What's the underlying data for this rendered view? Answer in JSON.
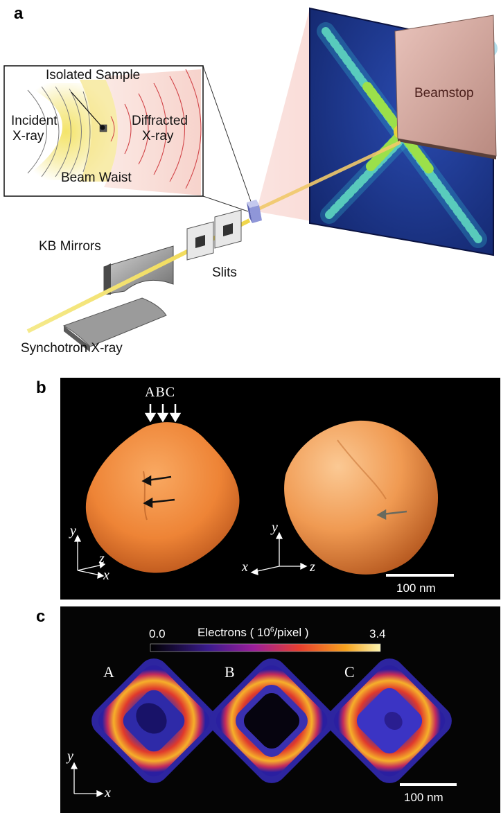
{
  "panel_a": {
    "letter": "a",
    "isolated_sample": "Isolated Sample",
    "incident_line1": "Incident",
    "incident_line2": "X-ray",
    "diffracted_line1": "Diffracted",
    "diffracted_line2": "X-ray",
    "beam_waist": "Beam Waist",
    "beamstop": "Beamstop",
    "kb_mirrors": "KB Mirrors",
    "slits": "Slits",
    "synchrotron": "Synchotron X-ray"
  },
  "panel_b": {
    "letter": "b",
    "abc_label": "ABC",
    "axis_left": {
      "y": "y",
      "z": "z",
      "x": "x"
    },
    "axis_right": {
      "y": "y",
      "x": "x",
      "z": "z"
    },
    "scalebar": "100 nm"
  },
  "panel_c": {
    "letter": "c",
    "colorbar_min": "0.0",
    "colorbar_title": "Electrons ( 10",
    "colorbar_exp": "6",
    "colorbar_unit": "/pixel )",
    "colorbar_max": "3.4",
    "slice_labels": [
      "A",
      "B",
      "C"
    ],
    "axis": {
      "y": "y",
      "x": "x"
    },
    "scalebar": "100 nm"
  },
  "colors": {
    "beam": "#f3e37a",
    "particle": "#f08a3a",
    "pattern_bg": "#1a2f8a",
    "beamstop": "#cfa29a"
  }
}
